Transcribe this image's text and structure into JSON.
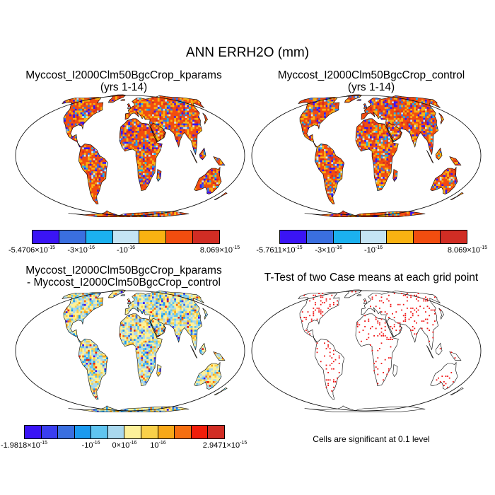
{
  "title": "ANN ERRH2O (mm)",
  "panels": {
    "kparams": {
      "title_line1": "Myccost_I2000Clm50BgcCrop_kparams",
      "title_line2": "(yrs 1-14)",
      "colorbar": {
        "colors": [
          "#3a14f5",
          "#3a6fe0",
          "#1bb1ef",
          "#c4e4f4",
          "#f9b212",
          "#f24d0f",
          "#d12d24"
        ],
        "labels": [
          "-5.4706×10",
          "-3×10",
          "-10",
          "8.069×10"
        ],
        "exponents": [
          "-15",
          "-16",
          "-16",
          "-15"
        ]
      }
    },
    "control": {
      "title_line1": "Myccost_I2000Clm50BgcCrop_control",
      "title_line2": "(yrs 1-14)",
      "colorbar": {
        "colors": [
          "#3a14f5",
          "#3a6fe0",
          "#1bb1ef",
          "#c4e4f4",
          "#f9b212",
          "#f24d0f",
          "#d12d24"
        ],
        "labels": [
          "-5.7611×10",
          "-3×10",
          "-10",
          "8.069×10"
        ],
        "exponents": [
          "-15",
          "-16",
          "-16",
          "-15"
        ]
      }
    },
    "difference": {
      "title_line1": "Myccost_I2000Clm50BgcCrop_kparams",
      "title_line2": "- Myccost_I2000Clm50BgcCrop_control",
      "colorbar": {
        "colors": [
          "#3a14f5",
          "#3a3ef0",
          "#3a6fe0",
          "#1b9aef",
          "#5fc4f0",
          "#a9d8ee",
          "#fdf19a",
          "#f9d04a",
          "#f8a818",
          "#f56e10",
          "#f11d0a",
          "#d12d24"
        ],
        "labels": [
          "-1.9818×10",
          "-10",
          "0×10",
          "10",
          "2.9471×10"
        ],
        "exponents": [
          "-15",
          "-16",
          "-16",
          "-16",
          "-15"
        ]
      }
    },
    "ttest": {
      "title": "T-Test of two Case means at each grid point",
      "footnote": "Cells are significant at 0.1 level"
    }
  },
  "icons": {
    "map": "world-map-icon"
  }
}
